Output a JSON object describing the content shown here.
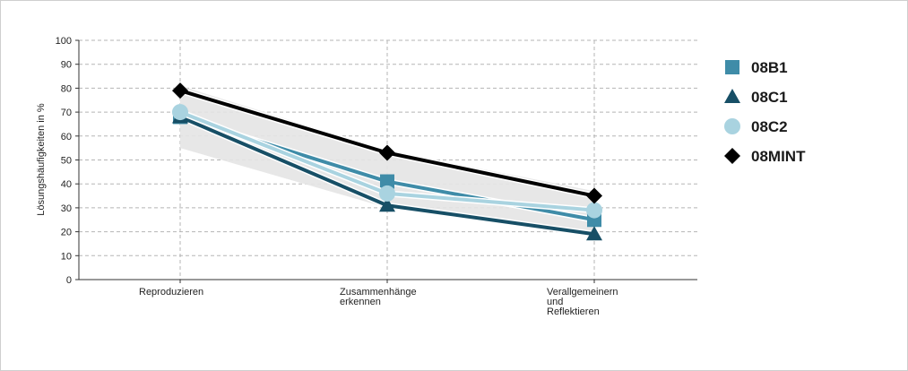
{
  "chart_data": {
    "type": "line",
    "ylabel": "Lösungshäufigkeiten in %",
    "ylim": [
      0,
      100
    ],
    "yticks": [
      0,
      10,
      20,
      30,
      40,
      50,
      60,
      70,
      80,
      90,
      100
    ],
    "grid": true,
    "legend_position": "right",
    "categories": [
      [
        "Reproduzieren"
      ],
      [
        "Zusammenhänge",
        "erkennen"
      ],
      [
        "Verallgemeinern",
        "und",
        "Reflektieren"
      ]
    ],
    "band": {
      "lower": [
        55,
        30,
        18
      ],
      "upper": [
        81,
        54,
        37
      ],
      "color": "#e4e4e4"
    },
    "series": [
      {
        "name": "08B1",
        "values": [
          68,
          41,
          25
        ],
        "color": "#3f8ca8",
        "marker": "square"
      },
      {
        "name": "08C1",
        "values": [
          68,
          31,
          19
        ],
        "color": "#174f66",
        "marker": "triangle"
      },
      {
        "name": "08C2",
        "values": [
          70,
          36,
          29
        ],
        "color": "#a9d3e0",
        "marker": "circle"
      },
      {
        "name": "08MINT",
        "values": [
          79,
          53,
          35
        ],
        "color": "#000000",
        "marker": "diamond"
      }
    ]
  }
}
